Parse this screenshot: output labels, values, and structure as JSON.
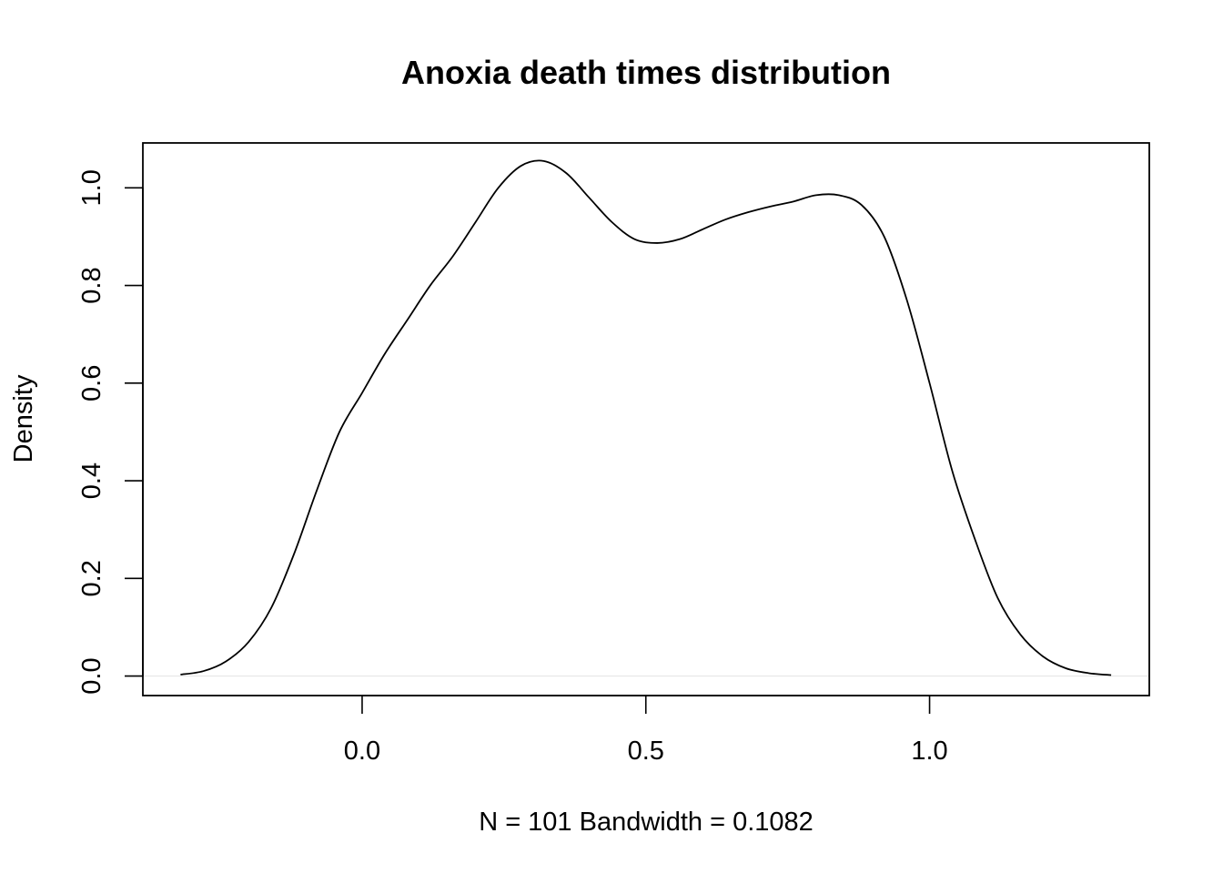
{
  "chart_data": {
    "type": "line",
    "title": "Anoxia death times distribution",
    "xlabel": "N = 101   Bandwidth = 0.1082",
    "ylabel": "Density",
    "xlim": [
      -0.3864,
      1.3872
    ],
    "ylim": [
      -0.04,
      1.092
    ],
    "x_ticks": [
      0.0,
      0.5,
      1.0
    ],
    "x_tick_labels": [
      "0.0",
      "0.5",
      "1.0"
    ],
    "y_ticks": [
      0.0,
      0.2,
      0.4,
      0.6,
      0.8,
      1.0
    ],
    "y_tick_labels": [
      "0.0",
      "0.2",
      "0.4",
      "0.6",
      "0.8",
      "1.0"
    ],
    "zero_line": true,
    "grid": false,
    "series": [
      {
        "x": [
          -0.32,
          -0.28,
          -0.24,
          -0.2,
          -0.16,
          -0.12,
          -0.08,
          -0.04,
          0.0,
          0.04,
          0.08,
          0.12,
          0.16,
          0.2,
          0.24,
          0.28,
          0.32,
          0.36,
          0.4,
          0.44,
          0.48,
          0.52,
          0.56,
          0.6,
          0.64,
          0.68,
          0.72,
          0.76,
          0.8,
          0.84,
          0.88,
          0.92,
          0.96,
          1.0,
          1.04,
          1.08,
          1.12,
          1.16,
          1.2,
          1.24,
          1.28,
          1.32
        ],
        "values": [
          0.003,
          0.01,
          0.03,
          0.07,
          0.14,
          0.25,
          0.38,
          0.5,
          0.58,
          0.66,
          0.73,
          0.8,
          0.86,
          0.93,
          1.0,
          1.045,
          1.055,
          1.03,
          0.98,
          0.93,
          0.895,
          0.887,
          0.895,
          0.915,
          0.935,
          0.95,
          0.962,
          0.972,
          0.985,
          0.985,
          0.965,
          0.9,
          0.77,
          0.6,
          0.42,
          0.28,
          0.16,
          0.085,
          0.04,
          0.016,
          0.006,
          0.002
        ]
      }
    ]
  }
}
